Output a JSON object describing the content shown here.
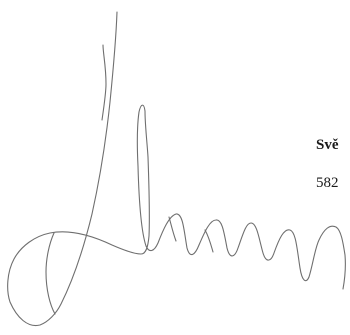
{
  "document": {
    "text_lines": [
      "Svě",
      "582"
    ],
    "signature": {
      "kind": "handwritten-signature",
      "ink_color": "#6f6f6f"
    }
  }
}
